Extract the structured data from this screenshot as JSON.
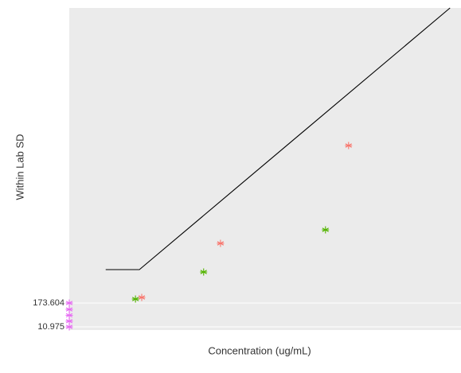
{
  "chart_data": {
    "type": "scatter",
    "x_label": "Concentration (ug/mL)",
    "y_label": "Within Lab SD",
    "xlim": [
      0,
      100
    ],
    "ylim": [
      -10.7,
      2184.8
    ],
    "yticks": [
      10.975,
      173.604
    ],
    "line": {
      "color": "#000000",
      "x": [
        9.3,
        17.9,
        97.2
      ],
      "values": [
        401.3,
        401.3,
        2184.8
      ]
    },
    "series": [
      {
        "color": "#f8766d",
        "x": [
          18.5,
          38.6,
          71.3
        ],
        "values": [
          211.6,
          580.2,
          1247
        ]
      },
      {
        "color": "#53b400",
        "x": [
          16.9,
          34.3,
          65.4
        ],
        "values": [
          200.7,
          385,
          672.3
        ]
      },
      {
        "color": "#e76bf3",
        "x": [
          0,
          0,
          0,
          0,
          0
        ],
        "values": [
          173.604,
          130,
          90,
          50,
          10.975
        ]
      }
    ]
  }
}
